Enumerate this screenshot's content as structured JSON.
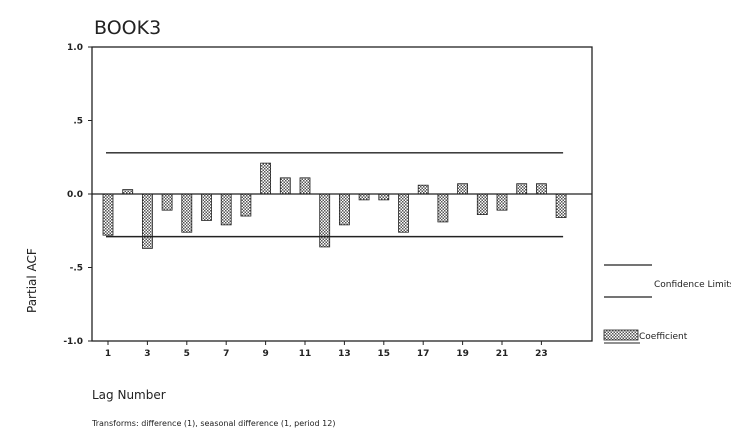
{
  "chart_data": {
    "type": "bar",
    "title": "BOOK3",
    "xlabel": "Lag Number",
    "ylabel": "Partial ACF",
    "ylim": [
      -1.0,
      1.0
    ],
    "yticks": [
      {
        "value": 1.0,
        "label": "1.0"
      },
      {
        "value": 0.5,
        "label": ".5"
      },
      {
        "value": 0.0,
        "label": "0.0"
      },
      {
        "value": -0.5,
        "label": "-.5"
      },
      {
        "value": -1.0,
        "label": "-1.0"
      }
    ],
    "xtick_labels": [
      "1",
      "3",
      "5",
      "7",
      "9",
      "11",
      "13",
      "15",
      "17",
      "19",
      "21",
      "23"
    ],
    "lags": [
      1,
      2,
      3,
      4,
      5,
      6,
      7,
      8,
      9,
      10,
      11,
      12,
      13,
      14,
      15,
      16,
      17,
      18,
      19,
      20,
      21,
      22,
      23,
      24
    ],
    "values": [
      -0.28,
      0.03,
      -0.37,
      -0.11,
      -0.26,
      -0.18,
      -0.21,
      -0.15,
      0.21,
      0.11,
      0.11,
      -0.36,
      -0.21,
      -0.04,
      -0.04,
      -0.26,
      0.06,
      -0.19,
      0.07,
      -0.14,
      -0.11,
      0.07,
      0.07,
      -0.16
    ],
    "confidence_limits": [
      0.28,
      -0.29
    ],
    "legend": {
      "placement": "right",
      "entries": [
        {
          "label": "Confidence Limits",
          "kind": "line"
        },
        {
          "label": "Coefficient",
          "kind": "hatched-box"
        }
      ]
    },
    "footnote": "Transforms: difference (1), seasonal difference (1, period 12)",
    "colors": {
      "bar_fill": "#8a8a8a",
      "line": "#222222"
    }
  }
}
